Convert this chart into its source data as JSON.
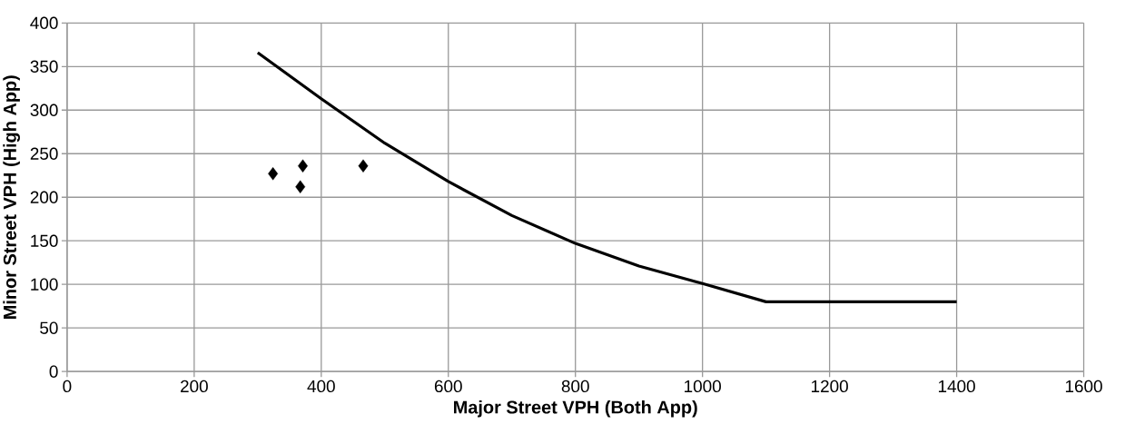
{
  "chart_data": {
    "type": "scatter",
    "xlabel": "Major Street VPH (Both App)",
    "ylabel": "Minor Street VPH (High App)",
    "xlim": [
      0,
      1600
    ],
    "ylim": [
      0,
      400
    ],
    "xticks": [
      0,
      200,
      400,
      600,
      800,
      1000,
      1200,
      1400,
      1600
    ],
    "yticks": [
      0,
      50,
      100,
      150,
      200,
      250,
      300,
      350,
      400
    ],
    "grid": true,
    "series": [
      {
        "type": "line",
        "color": "#000000",
        "marker": "none",
        "line_style": "solid",
        "x": [
          300,
          400,
          500,
          600,
          700,
          800,
          900,
          1000,
          1100,
          1400
        ],
        "values": [
          366,
          313,
          262,
          218,
          179,
          147,
          121,
          101,
          80,
          80
        ]
      },
      {
        "color": "#000000",
        "marker": "diamond",
        "x": [
          324,
          371,
          367,
          466
        ],
        "values": [
          227,
          236,
          212,
          236
        ]
      }
    ]
  }
}
